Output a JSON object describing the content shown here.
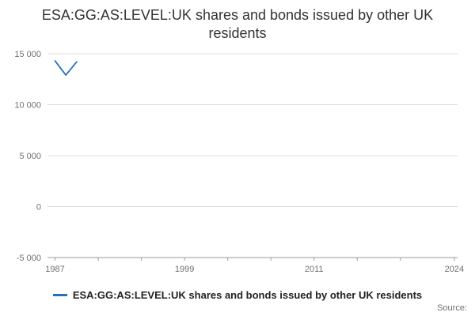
{
  "page": {
    "title": "ESA:GG:AS:LEVEL:UK shares and bonds issued by other UK residents",
    "source_label": "Source:"
  },
  "legend": {
    "label": "ESA:GG:AS:LEVEL:UK shares and bonds issued by other UK residents"
  },
  "colors": {
    "line": "#2073bc",
    "grid": "#dcdcdc",
    "axis": "#9a9a9a",
    "tick_label": "#707071",
    "legend_text": "#222222"
  },
  "chart_data": {
    "type": "line",
    "title": "ESA:GG:AS:LEVEL:UK shares and bonds issued by other UK residents",
    "series": [
      {
        "name": "ESA:GG:AS:LEVEL:UK shares and bonds issued by other UK residents",
        "x": [
          1987,
          1988,
          1989
        ],
        "values": [
          14300,
          12900,
          14200
        ]
      }
    ],
    "xlabel": "",
    "ylabel": "",
    "xlim": [
      1986.3,
      2024.3
    ],
    "ylim": [
      -5000,
      15000
    ],
    "yticks": [
      15000,
      10000,
      5000,
      0,
      -5000
    ],
    "ytick_labels": [
      "15 000",
      "10 000",
      "5 000",
      "0",
      "-5 000"
    ],
    "xticks": [
      1987,
      1991,
      1995,
      1999,
      2003,
      2007,
      2011,
      2015,
      2019,
      2024
    ],
    "labeled_xticks": [
      1987,
      1999,
      2011,
      2024
    ],
    "grid": "horizontal-only",
    "legend_position": "bottom",
    "line_color": "#2073bc"
  }
}
